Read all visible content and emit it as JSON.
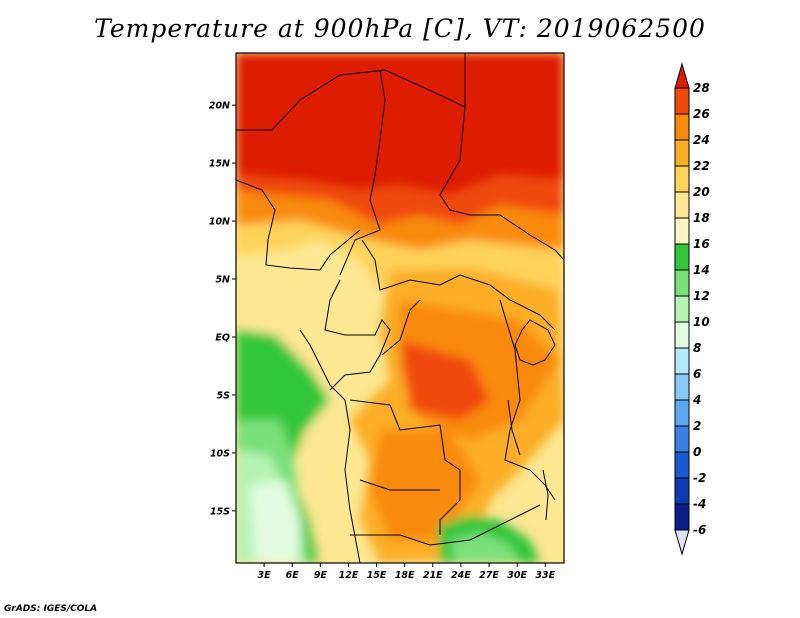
{
  "title": "Temperature at 900hPa [C], VT: 2019062500",
  "credit": "GrADS: IGES/COLA",
  "map": {
    "lat_labels": [
      "20N",
      "15N",
      "10N",
      "5N",
      "EQ",
      "5S",
      "10S",
      "15S"
    ],
    "lon_labels": [
      "3E",
      "6E",
      "9E",
      "12E",
      "15E",
      "18E",
      "21E",
      "24E",
      "27E",
      "30E",
      "33E"
    ],
    "lat_range": [
      -19.5,
      24.5
    ],
    "lon_range": [
      0,
      35
    ]
  },
  "colorbar": {
    "labels": [
      "28",
      "26",
      "24",
      "22",
      "20",
      "18",
      "16",
      "14",
      "12",
      "10",
      "8",
      "6",
      "4",
      "2",
      "0",
      "-2",
      "-4",
      "-6"
    ],
    "colors": [
      "#dd1c05",
      "#f04a0a",
      "#f98a0e",
      "#fbae27",
      "#fed35a",
      "#fde792",
      "#fff4c4",
      "#32c63a",
      "#7ae07a",
      "#b5f3b2",
      "#e2fbe0",
      "#b4e9fb",
      "#87caf7",
      "#5ca7f0",
      "#3b80e4",
      "#1a5bd3",
      "#0e3bb4",
      "#0b1e8c",
      "#051064",
      "#e3e0fa"
    ],
    "min_arrow_color": "#e3e0fa",
    "max_arrow_color": "#dd1c05"
  }
}
